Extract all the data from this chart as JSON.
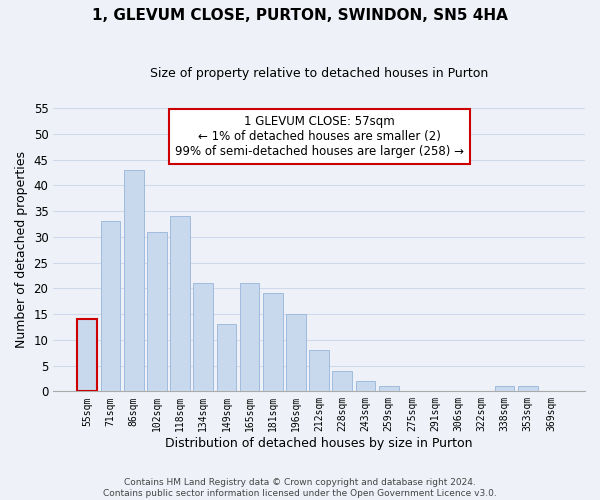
{
  "title": "1, GLEVUM CLOSE, PURTON, SWINDON, SN5 4HA",
  "subtitle": "Size of property relative to detached houses in Purton",
  "xlabel": "Distribution of detached houses by size in Purton",
  "ylabel": "Number of detached properties",
  "bar_labels": [
    "55sqm",
    "71sqm",
    "86sqm",
    "102sqm",
    "118sqm",
    "134sqm",
    "149sqm",
    "165sqm",
    "181sqm",
    "196sqm",
    "212sqm",
    "228sqm",
    "243sqm",
    "259sqm",
    "275sqm",
    "291sqm",
    "306sqm",
    "322sqm",
    "338sqm",
    "353sqm",
    "369sqm"
  ],
  "bar_values": [
    14,
    33,
    43,
    31,
    34,
    21,
    13,
    21,
    19,
    15,
    8,
    4,
    2,
    1,
    0,
    0,
    0,
    0,
    1,
    1,
    0
  ],
  "bar_color": "#c8d9ee",
  "bar_edge_color": "#a0bbdd",
  "highlight_bar_index": 0,
  "highlight_edge_color": "#cc0000",
  "ylim": [
    0,
    55
  ],
  "yticks": [
    0,
    5,
    10,
    15,
    20,
    25,
    30,
    35,
    40,
    45,
    50,
    55
  ],
  "annotation_title": "1 GLEVUM CLOSE: 57sqm",
  "annotation_line1": "← 1% of detached houses are smaller (2)",
  "annotation_line2": "99% of semi-detached houses are larger (258) →",
  "annotation_box_color": "#ffffff",
  "annotation_box_edge": "#cc0000",
  "footer_line1": "Contains HM Land Registry data © Crown copyright and database right 2024.",
  "footer_line2": "Contains public sector information licensed under the Open Government Licence v3.0.",
  "grid_color": "#d0d8ec",
  "background_color": "#eef2f8"
}
